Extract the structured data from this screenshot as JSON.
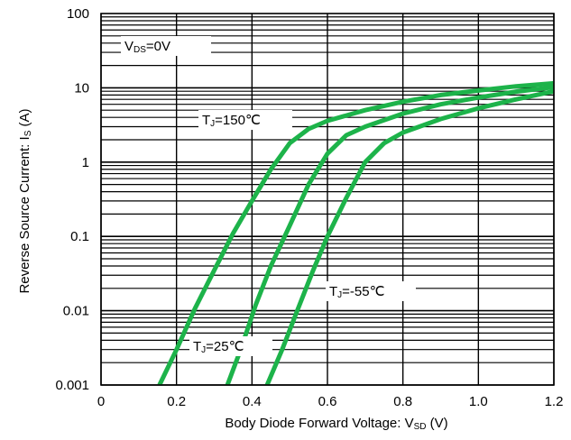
{
  "chart_data": {
    "type": "line",
    "title": "",
    "xlabel": {
      "prefix": "Body Diode Forward Voltage: V",
      "sub": "SD",
      "suffix": " (V)"
    },
    "ylabel": {
      "prefix": "Reverse Source Current: I",
      "sub": "S",
      "suffix": " (A)"
    },
    "x_scale": "linear",
    "y_scale": "log",
    "xlim": [
      0,
      1.2
    ],
    "ylim": [
      0.001,
      100
    ],
    "x_ticks": [
      {
        "v": 0,
        "label": "0"
      },
      {
        "v": 0.2,
        "label": "0.2"
      },
      {
        "v": 0.4,
        "label": "0.4"
      },
      {
        "v": 0.6,
        "label": "0.6"
      },
      {
        "v": 0.8,
        "label": "0.8"
      },
      {
        "v": 1.0,
        "label": "1.0"
      },
      {
        "v": 1.2,
        "label": "1.2"
      }
    ],
    "y_ticks": [
      {
        "v": 0.001,
        "label": "0.001"
      },
      {
        "v": 0.01,
        "label": "0.01"
      },
      {
        "v": 0.1,
        "label": "0.1"
      },
      {
        "v": 1,
        "label": "1"
      },
      {
        "v": 10,
        "label": "10"
      },
      {
        "v": 100,
        "label": "100"
      }
    ],
    "grid": true,
    "condition_label": {
      "prefix": "V",
      "sub": "DS",
      "suffix": "=0V"
    },
    "line_color": "#1db34a",
    "series": [
      {
        "label": {
          "prefix": "T",
          "sub": "J",
          "suffix": "=150℃"
        },
        "points": [
          [
            0.155,
            0.001
          ],
          [
            0.2,
            0.003
          ],
          [
            0.25,
            0.011
          ],
          [
            0.3,
            0.035
          ],
          [
            0.35,
            0.11
          ],
          [
            0.4,
            0.3
          ],
          [
            0.45,
            0.8
          ],
          [
            0.5,
            1.8
          ],
          [
            0.55,
            2.8
          ],
          [
            0.6,
            3.6
          ],
          [
            0.7,
            5.0
          ],
          [
            0.8,
            6.5
          ],
          [
            0.9,
            8.0
          ],
          [
            1.0,
            9.2
          ],
          [
            1.1,
            10.5
          ],
          [
            1.2,
            11.5
          ]
        ]
      },
      {
        "label": {
          "prefix": "T",
          "sub": "J",
          "suffix": "=25℃"
        },
        "points": [
          [
            0.335,
            0.001
          ],
          [
            0.37,
            0.003
          ],
          [
            0.41,
            0.012
          ],
          [
            0.45,
            0.04
          ],
          [
            0.5,
            0.14
          ],
          [
            0.55,
            0.5
          ],
          [
            0.6,
            1.3
          ],
          [
            0.65,
            2.3
          ],
          [
            0.7,
            3.0
          ],
          [
            0.8,
            4.5
          ],
          [
            0.9,
            6.0
          ],
          [
            1.0,
            7.4
          ],
          [
            1.1,
            8.9
          ],
          [
            1.2,
            10.2
          ]
        ]
      },
      {
        "label": {
          "prefix": "T",
          "sub": "J",
          "suffix": "=-55℃"
        },
        "points": [
          [
            0.44,
            0.001
          ],
          [
            0.48,
            0.003
          ],
          [
            0.52,
            0.01
          ],
          [
            0.56,
            0.033
          ],
          [
            0.6,
            0.1
          ],
          [
            0.65,
            0.33
          ],
          [
            0.7,
            1.0
          ],
          [
            0.75,
            1.8
          ],
          [
            0.8,
            2.5
          ],
          [
            0.9,
            3.8
          ],
          [
            1.0,
            5.3
          ],
          [
            1.1,
            7.0
          ],
          [
            1.2,
            9.0
          ]
        ]
      }
    ]
  }
}
